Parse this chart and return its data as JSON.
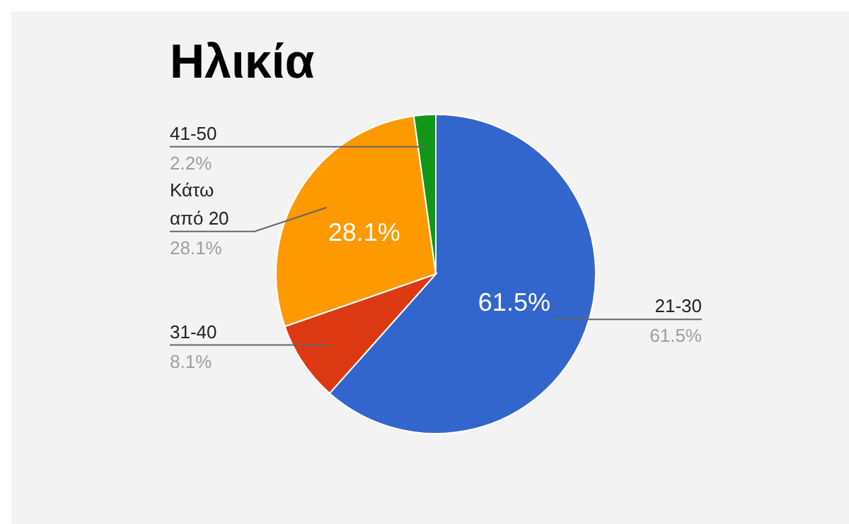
{
  "chart_data": {
    "type": "pie",
    "title": "Ηλικία",
    "categories": [
      "21-30",
      "31-40",
      "Κάτω από 20",
      "41-50"
    ],
    "values": [
      61.5,
      8.1,
      28.1,
      2.2
    ],
    "colors": [
      "#3366cc",
      "#dc3912",
      "#ff9900",
      "#109618"
    ],
    "value_labels": [
      "61.5%",
      "8.1%",
      "28.1%",
      "2.2%"
    ],
    "legend": false
  }
}
